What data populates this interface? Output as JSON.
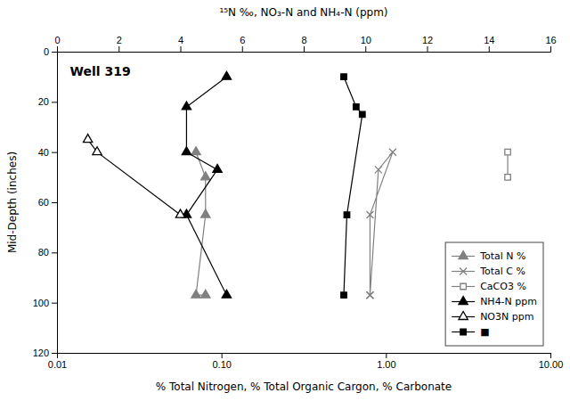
{
  "chart_data": {
    "type": "line",
    "x_label": "% Total Nitrogen, % Total Organic Cargon, % Carbonate",
    "x2_label": "¹⁵N ‰, NO₃-N and NH₄-N (ppm)",
    "y_label": "Mid-Depth (inches)",
    "annotations": [
      {
        "text": "Well 319",
        "x": 0.012,
        "y": 6
      }
    ],
    "log": "x",
    "xlim": [
      0.01,
      10.0
    ],
    "xticks": [
      0.01,
      {
        "value": 0.1,
        "label": "0.10"
      },
      {
        "value": 1.0,
        "label": "1.00"
      },
      {
        "value": 10.0,
        "label": "10.00"
      }
    ],
    "x2lim": [
      0,
      16
    ],
    "x2ticks": [
      0,
      2,
      4,
      6,
      8,
      10,
      12,
      14,
      16
    ],
    "ylim": [
      120,
      0
    ],
    "yticks": [
      0,
      20,
      40,
      60,
      80,
      100,
      120
    ],
    "grid": false,
    "legend": "lower right",
    "series": [
      {
        "name": "Total N %",
        "color": "#808080",
        "marker": "triangle",
        "line_style": "solid",
        "x": [
          0.07,
          0.08,
          0.08,
          0.07,
          0.08
        ],
        "values": [
          40,
          50,
          65,
          97,
          97
        ]
      },
      {
        "name": "Total C %",
        "color": "#808080",
        "marker": "x",
        "line_style": "solid",
        "x": [
          0.8,
          0.9,
          1.1,
          0.8,
          0.8
        ],
        "values": [
          97,
          47,
          40,
          65,
          97
        ]
      },
      {
        "name": "CaCO3 %",
        "color": "#808080",
        "marker": "square-open",
        "line_style": "solid",
        "x": [
          5.5,
          5.5
        ],
        "values": [
          40,
          50
        ]
      },
      {
        "name": "NH4-N ppm",
        "color": "black",
        "marker": "triangle",
        "line_style": "solid",
        "axis": "x2",
        "x": [
          5.5,
          4.2,
          4.2,
          5.2,
          4.2,
          5.5
        ],
        "values": [
          10,
          22,
          40,
          47,
          65,
          97
        ]
      },
      {
        "name": "NO3N ppm",
        "color": "black",
        "marker": "triangle-open",
        "line_style": "solid",
        "axis": "x2",
        "x": [
          1.0,
          1.3,
          4.0
        ],
        "values": [
          35,
          40,
          65
        ]
      },
      {
        "name": "■",
        "color": "black",
        "marker": "square",
        "line_style": "solid",
        "axis": "x2",
        "x": [
          9.3,
          9.7,
          9.9,
          9.4,
          9.3
        ],
        "values": [
          10,
          22,
          25,
          65,
          97
        ]
      }
    ]
  }
}
